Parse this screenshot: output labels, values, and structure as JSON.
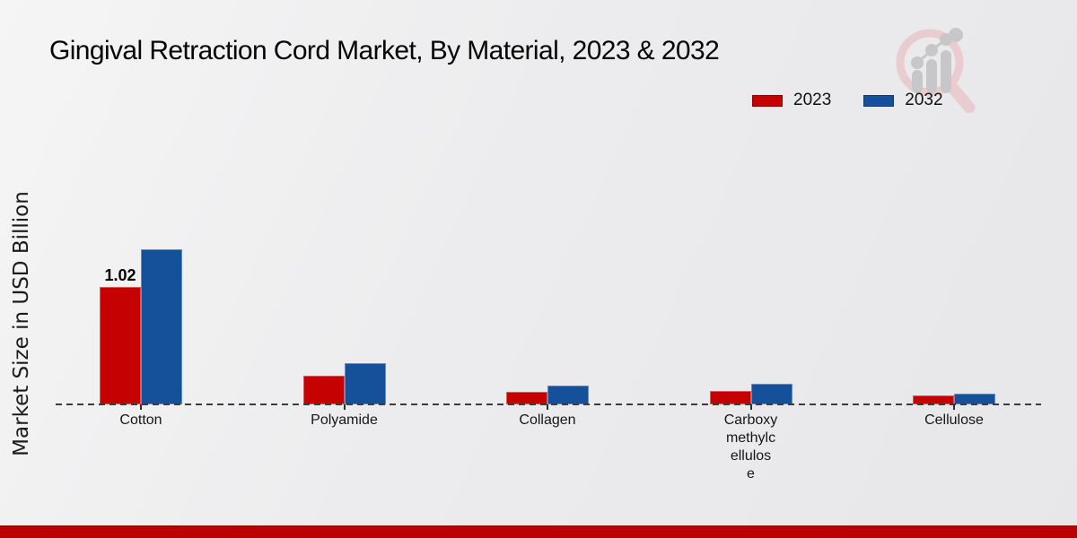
{
  "page": {
    "background_top": "#f5f5f5",
    "background_bottom": "#e7e7e9",
    "footer_bar_color": "#bb0200",
    "footer_bar_edge_color": "#9c0a04"
  },
  "watermark": {
    "icon": "magnifier-growth-chart-logo"
  },
  "chart_data": {
    "type": "bar",
    "title": "Gingival Retraction Cord Market, By Material, 2023 & 2032",
    "ylabel": "Market Size in USD Billion",
    "xlabel": "",
    "categories": [
      "Cotton",
      "Polyamide",
      "Collagen",
      "Carboxymethylcellulose",
      "Cellulose"
    ],
    "category_display_lines": [
      [
        "Cotton"
      ],
      [
        "Polyamide"
      ],
      [
        "Collagen"
      ],
      [
        "Carboxy",
        "methylc",
        "ellulos",
        "e"
      ],
      [
        "Cellulose"
      ]
    ],
    "series": [
      {
        "name": "2023",
        "color": "#c60102",
        "values": [
          1.02,
          0.25,
          0.11,
          0.12,
          0.08
        ]
      },
      {
        "name": "2032",
        "color": "#15509a",
        "values": [
          1.35,
          0.36,
          0.16,
          0.18,
          0.09
        ]
      }
    ],
    "annotations": [
      {
        "series": "2023",
        "category": "Cotton",
        "text": "1.02"
      }
    ],
    "ylim": [
      0,
      1.4
    ],
    "grid": false,
    "legend_position": "top-right",
    "baseline_style": "dashed",
    "axis_line_color": "#3c3c3c",
    "label_color": "#161616"
  }
}
